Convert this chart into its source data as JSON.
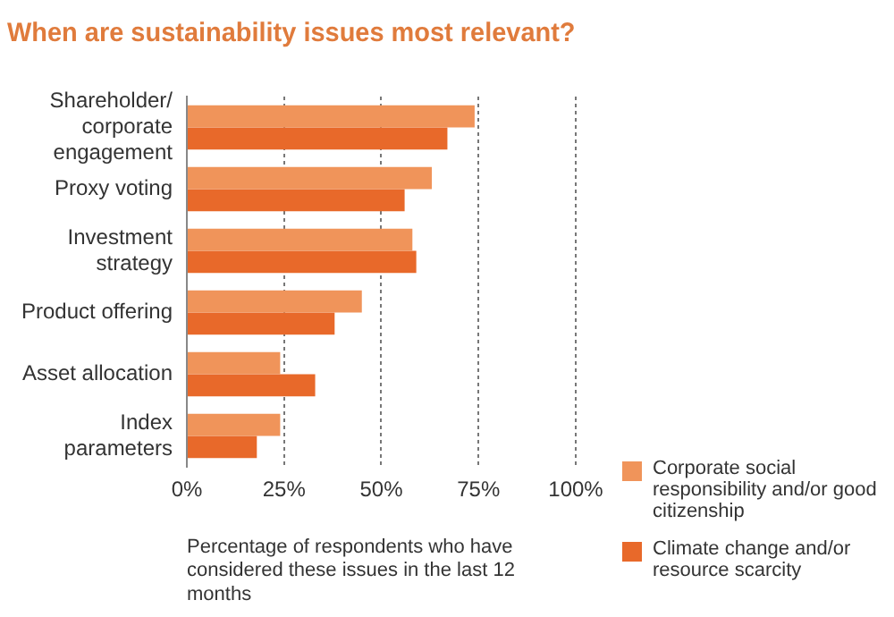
{
  "chart_data": {
    "type": "bar",
    "orientation": "horizontal",
    "title": "When are sustainability issues most relevant?",
    "xlabel": "Percentage of respondents who have considered these issues in the last 12 months",
    "categories": [
      "Shareholder/ corporate engagement",
      "Proxy voting",
      "Investment strategy",
      "Product offering",
      "Asset allocation",
      "Index parameters"
    ],
    "series": [
      {
        "name": "Corporate social responsibility and/or good citizenship",
        "color": "#f0945a",
        "values": [
          74,
          63,
          58,
          45,
          24,
          24
        ]
      },
      {
        "name": "Climate change and/or resource scarcity",
        "color": "#e8692a",
        "values": [
          67,
          56,
          59,
          38,
          33,
          18
        ]
      }
    ],
    "xlim": [
      0,
      100
    ],
    "xticks": [
      {
        "value": 0,
        "label": "0%"
      },
      {
        "value": 25,
        "label": "25%"
      },
      {
        "value": 50,
        "label": "50%"
      },
      {
        "value": 75,
        "label": "75%"
      },
      {
        "value": 100,
        "label": "100%"
      }
    ],
    "grid": "x",
    "legend": "bottom right"
  }
}
